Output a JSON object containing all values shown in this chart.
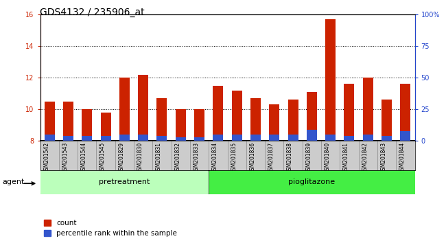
{
  "title": "GDS4132 / 235906_at",
  "samples": [
    "GSM201542",
    "GSM201543",
    "GSM201544",
    "GSM201545",
    "GSM201829",
    "GSM201830",
    "GSM201831",
    "GSM201832",
    "GSM201833",
    "GSM201834",
    "GSM201835",
    "GSM201836",
    "GSM201837",
    "GSM201838",
    "GSM201839",
    "GSM201840",
    "GSM201841",
    "GSM201842",
    "GSM201843",
    "GSM201844"
  ],
  "count_values": [
    10.5,
    10.5,
    10.0,
    9.8,
    12.0,
    12.2,
    10.7,
    10.0,
    10.0,
    11.5,
    11.2,
    10.7,
    10.3,
    10.6,
    11.1,
    15.7,
    11.6,
    12.0,
    10.6,
    11.6
  ],
  "percentile_values": [
    5,
    4,
    4,
    4,
    5,
    5,
    4,
    3,
    3,
    5,
    5,
    5,
    5,
    5,
    9,
    5,
    4,
    5,
    4,
    8
  ],
  "ylim_left": [
    8,
    16
  ],
  "ylim_right": [
    0,
    100
  ],
  "yticks_left": [
    8,
    10,
    12,
    14,
    16
  ],
  "yticks_right": [
    0,
    25,
    50,
    75,
    100
  ],
  "ytick_labels_right": [
    "0",
    "25",
    "50",
    "75",
    "100%"
  ],
  "bar_color_count": "#cc2200",
  "bar_color_percentile": "#3355cc",
  "bar_bottom": 8.0,
  "pretreatment_indices": [
    0,
    1,
    2,
    3,
    4,
    5,
    6,
    7,
    8
  ],
  "pioglitazone_indices": [
    9,
    10,
    11,
    12,
    13,
    14,
    15,
    16,
    17,
    18,
    19
  ],
  "pretreatment_label": "pretreatment",
  "pioglitazone_label": "pioglitazone",
  "agent_label": "agent",
  "legend_count_label": "count",
  "legend_percentile_label": "percentile rank within the sample",
  "bar_width": 0.55,
  "grid_color": "#000000",
  "bg_plot": "#ffffff",
  "bg_xlabel": "#cccccc",
  "pretreatment_color": "#bbffbb",
  "pioglitazone_color": "#44ee44",
  "title_fontsize": 10,
  "tick_fontsize": 7,
  "label_fontsize": 8
}
